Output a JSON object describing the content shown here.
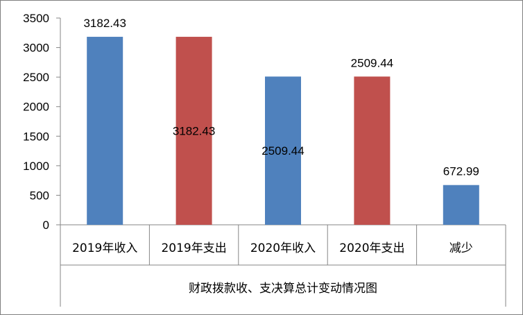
{
  "chart_data": {
    "type": "bar",
    "categories": [
      "2019年收入",
      "2019年支出",
      "2020年收入",
      "2020年支出",
      "减少"
    ],
    "values": [
      3182.43,
      3182.43,
      2509.44,
      2509.44,
      672.99
    ],
    "data_labels": [
      "3182.43",
      "3182.43",
      "2509.44",
      "2509.44",
      "672.99"
    ],
    "label_positions": [
      "above",
      "inside",
      "inside",
      "above",
      "above"
    ],
    "bar_colors": [
      "#4f81bd",
      "#c0504d",
      "#4f81bd",
      "#c0504d",
      "#4f81bd"
    ],
    "title": "",
    "xlabel": "财政拨款收、支决算总计变动情况图",
    "ylabel": "",
    "ylim": [
      0,
      3500
    ],
    "yticks": [
      0,
      500,
      1000,
      1500,
      2000,
      2500,
      3000,
      3500
    ],
    "ytick_labels": [
      "0",
      "500",
      "1000",
      "1500",
      "2000",
      "2500",
      "3000",
      "3500"
    ],
    "grid": false,
    "legend": "none"
  }
}
